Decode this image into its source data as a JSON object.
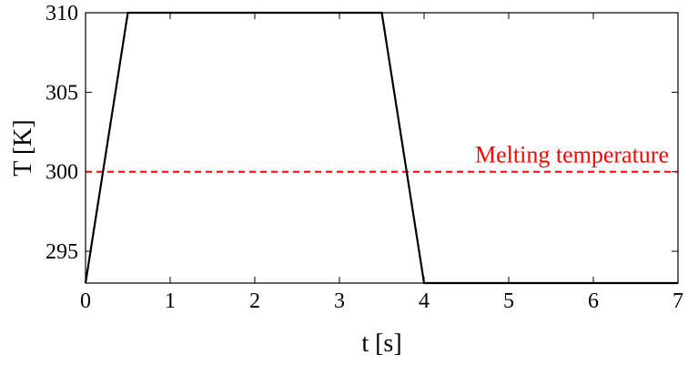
{
  "chart_data": {
    "type": "line",
    "title": "",
    "xlabel": "t [s]",
    "ylabel": "T [K]",
    "xlim": [
      0,
      7
    ],
    "ylim": [
      293,
      310
    ],
    "xticks": [
      0,
      1,
      2,
      3,
      4,
      5,
      6,
      7
    ],
    "yticks": [
      295,
      300,
      305,
      310
    ],
    "grid": false,
    "series": [
      {
        "x": [
          0,
          0.5,
          3.5,
          4,
          7
        ],
        "y": [
          293,
          310,
          310,
          293,
          293
        ],
        "color": "#000000",
        "style": "solid"
      }
    ],
    "reference_line": {
      "y": 300,
      "label": "Melting temperature",
      "color": "#ff0000",
      "style": "dashed"
    }
  }
}
